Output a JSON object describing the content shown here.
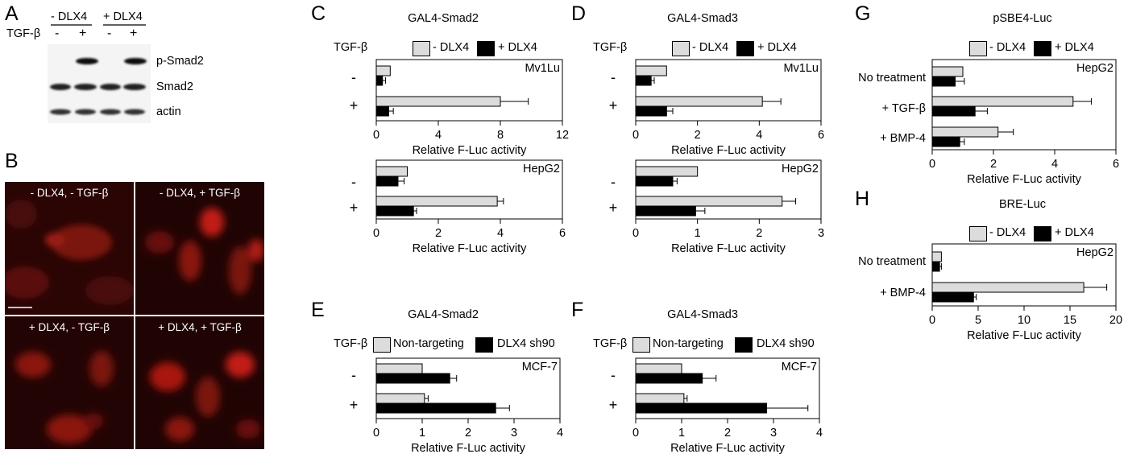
{
  "panels": {
    "A": {
      "label": "A",
      "groups": [
        "- DLX4",
        "+ DLX4"
      ],
      "treatment": "TGF-β",
      "signs": [
        "-",
        "+",
        "-",
        "+"
      ],
      "bands": [
        "p-Smad2",
        "Smad2",
        "actin"
      ]
    },
    "B": {
      "label": "B",
      "images": [
        "- DLX4, - TGF-β",
        "- DLX4, + TGF-β",
        "+ DLX4, - TGF-β",
        "+ DLX4, + TGF-β"
      ]
    },
    "C": {
      "label": "C",
      "title": "GAL4-Smad2",
      "treatment": "TGF-β"
    },
    "D": {
      "label": "D",
      "title": "GAL4-Smad3",
      "treatment": "TGF-β"
    },
    "E": {
      "label": "E",
      "title": "GAL4-Smad2",
      "treatment": "TGF-β"
    },
    "F": {
      "label": "F",
      "title": "GAL4-Smad3",
      "treatment": "TGF-β"
    },
    "G": {
      "label": "G",
      "title": "pSBE4-Luc"
    },
    "H": {
      "label": "H",
      "title": "BRE-Luc"
    }
  },
  "legends": {
    "dlx4": [
      "- DLX4",
      "+ DLX4"
    ],
    "knockdown": [
      "Non-targeting",
      "DLX4 sh90"
    ]
  },
  "colors": {
    "light_bar": "#dcdcdc",
    "dark_bar": "#000000",
    "stain": "#cc1a14"
  },
  "chart_data": [
    {
      "id": "C-top",
      "type": "bar",
      "orientation": "horizontal",
      "cell_line": "Mv1Lu",
      "categories": [
        "-",
        "+"
      ],
      "series": [
        {
          "name": "- DLX4",
          "values": [
            0.9,
            8.0
          ],
          "errors": [
            0.0,
            1.8
          ]
        },
        {
          "name": "+ DLX4",
          "values": [
            0.4,
            0.8
          ],
          "errors": [
            0.2,
            0.3
          ]
        }
      ],
      "xlim": [
        0,
        12
      ],
      "xticks": [
        0,
        4,
        8,
        12
      ],
      "xlabel": "Relative F-Luc activity"
    },
    {
      "id": "C-bottom",
      "type": "bar",
      "orientation": "horizontal",
      "cell_line": "HepG2",
      "categories": [
        "-",
        "+"
      ],
      "series": [
        {
          "name": "- DLX4",
          "values": [
            1.0,
            3.9
          ],
          "errors": [
            0.0,
            0.2
          ]
        },
        {
          "name": "+ DLX4",
          "values": [
            0.7,
            1.2
          ],
          "errors": [
            0.2,
            0.1
          ]
        }
      ],
      "xlim": [
        0,
        6
      ],
      "xticks": [
        0,
        2,
        4,
        6
      ],
      "xlabel": "Relative F-Luc activity"
    },
    {
      "id": "D-top",
      "type": "bar",
      "orientation": "horizontal",
      "cell_line": "Mv1Lu",
      "categories": [
        "-",
        "+"
      ],
      "series": [
        {
          "name": "- DLX4",
          "values": [
            1.0,
            4.1
          ],
          "errors": [
            0.0,
            0.6
          ]
        },
        {
          "name": "+ DLX4",
          "values": [
            0.5,
            1.0
          ],
          "errors": [
            0.1,
            0.2
          ]
        }
      ],
      "xlim": [
        0,
        6
      ],
      "xticks": [
        0,
        2,
        4,
        6
      ],
      "xlabel": "Relative F-Luc activity"
    },
    {
      "id": "D-bottom",
      "type": "bar",
      "orientation": "horizontal",
      "cell_line": "HepG2",
      "categories": [
        "-",
        "+"
      ],
      "series": [
        {
          "name": "- DLX4",
          "values": [
            1.0,
            2.37
          ],
          "errors": [
            0.0,
            0.22
          ]
        },
        {
          "name": "+ DLX4",
          "values": [
            0.6,
            0.97
          ],
          "errors": [
            0.07,
            0.15
          ]
        }
      ],
      "xlim": [
        0,
        3
      ],
      "xticks": [
        0,
        1,
        2,
        3
      ],
      "xlabel": "Relative F-Luc activity"
    },
    {
      "id": "E",
      "type": "bar",
      "orientation": "horizontal",
      "cell_line": "MCF-7",
      "categories": [
        "-",
        "+"
      ],
      "series": [
        {
          "name": "Non-targeting",
          "values": [
            1.0,
            1.05
          ],
          "errors": [
            0.0,
            0.08
          ]
        },
        {
          "name": "DLX4 sh90",
          "values": [
            1.6,
            2.6
          ],
          "errors": [
            0.15,
            0.3
          ]
        }
      ],
      "xlim": [
        0,
        4
      ],
      "xticks": [
        0,
        1,
        2,
        3,
        4
      ],
      "xlabel": "Relative F-Luc activity"
    },
    {
      "id": "F",
      "type": "bar",
      "orientation": "horizontal",
      "cell_line": "MCF-7",
      "categories": [
        "-",
        "+"
      ],
      "series": [
        {
          "name": "Non-targeting",
          "values": [
            1.0,
            1.05
          ],
          "errors": [
            0.0,
            0.07
          ]
        },
        {
          "name": "DLX4 sh90",
          "values": [
            1.45,
            2.85
          ],
          "errors": [
            0.3,
            0.9
          ]
        }
      ],
      "xlim": [
        0,
        4
      ],
      "xticks": [
        0,
        1,
        2,
        3,
        4
      ],
      "xlabel": "Relative F-Luc activity"
    },
    {
      "id": "G",
      "type": "bar",
      "orientation": "horizontal",
      "cell_line": "HepG2",
      "categories": [
        "No treatment",
        "+ TGF-β",
        "+ BMP-4"
      ],
      "series": [
        {
          "name": "- DLX4",
          "values": [
            1.0,
            4.6,
            2.15
          ],
          "errors": [
            0.0,
            0.6,
            0.5
          ]
        },
        {
          "name": "+ DLX4",
          "values": [
            0.75,
            1.4,
            0.9
          ],
          "errors": [
            0.3,
            0.4,
            0.15
          ]
        }
      ],
      "xlim": [
        0,
        6
      ],
      "xticks": [
        0,
        2,
        4,
        6
      ],
      "xlabel": "Relative F-Luc activity"
    },
    {
      "id": "H",
      "type": "bar",
      "orientation": "horizontal",
      "cell_line": "HepG2",
      "categories": [
        "No treatment",
        "+ BMP-4"
      ],
      "series": [
        {
          "name": "- DLX4",
          "values": [
            1.0,
            16.5
          ],
          "errors": [
            0.0,
            2.5
          ]
        },
        {
          "name": "+ DLX4",
          "values": [
            0.8,
            4.5
          ],
          "errors": [
            0.2,
            0.3
          ]
        }
      ],
      "xlim": [
        0,
        20
      ],
      "xticks": [
        0,
        5,
        10,
        15,
        20
      ],
      "xlabel": "Relative F-Luc activity"
    }
  ]
}
